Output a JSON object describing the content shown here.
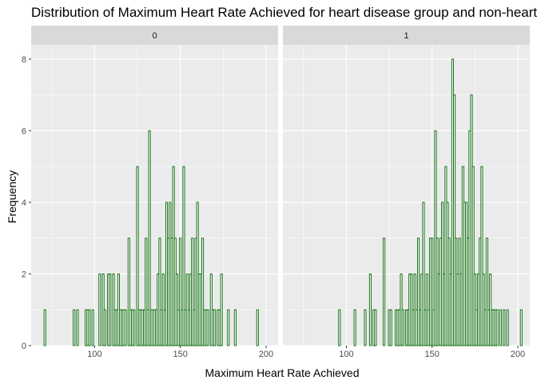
{
  "chart_data": {
    "type": "bar",
    "subtype": "faceted-histogram",
    "title": "Distribution of Maximum Heart Rate Achieved for heart disease group and non-heart disease group",
    "xlabel": "Maximum Heart Rate Achieved",
    "ylabel": "Frequency",
    "xlim": [
      63,
      207
    ],
    "ylim": [
      0,
      8.4
    ],
    "x_ticks": [
      100,
      150,
      200
    ],
    "y_ticks": [
      0,
      2,
      4,
      6,
      8
    ],
    "bin_width": 1,
    "bar_fill": "#ffffff",
    "bar_outline": "#006400",
    "panel_background": "#ebebeb",
    "strip_background": "#d9d9d9",
    "grid": true,
    "legend": "none",
    "facets": [
      {
        "label": "0",
        "bins": [
          [
            71,
            1
          ],
          [
            88,
            1
          ],
          [
            90,
            1
          ],
          [
            95,
            1
          ],
          [
            96,
            1
          ],
          [
            97,
            1
          ],
          [
            99,
            1
          ],
          [
            103,
            2
          ],
          [
            105,
            2
          ],
          [
            106,
            1
          ],
          [
            108,
            2
          ],
          [
            109,
            2
          ],
          [
            111,
            2
          ],
          [
            112,
            1
          ],
          [
            113,
            1
          ],
          [
            114,
            2
          ],
          [
            115,
            1
          ],
          [
            116,
            1
          ],
          [
            117,
            1
          ],
          [
            118,
            1
          ],
          [
            120,
            3
          ],
          [
            121,
            1
          ],
          [
            122,
            1
          ],
          [
            123,
            1
          ],
          [
            125,
            5
          ],
          [
            126,
            1
          ],
          [
            127,
            1
          ],
          [
            128,
            1
          ],
          [
            129,
            1
          ],
          [
            130,
            3
          ],
          [
            131,
            1
          ],
          [
            132,
            6
          ],
          [
            133,
            1
          ],
          [
            134,
            1
          ],
          [
            135,
            1
          ],
          [
            136,
            1
          ],
          [
            137,
            2
          ],
          [
            138,
            3
          ],
          [
            139,
            1
          ],
          [
            140,
            2
          ],
          [
            141,
            1
          ],
          [
            142,
            4
          ],
          [
            143,
            3
          ],
          [
            144,
            4
          ],
          [
            145,
            3
          ],
          [
            146,
            5
          ],
          [
            147,
            3
          ],
          [
            148,
            2
          ],
          [
            149,
            1
          ],
          [
            150,
            3
          ],
          [
            151,
            1
          ],
          [
            152,
            5
          ],
          [
            153,
            1
          ],
          [
            154,
            2
          ],
          [
            155,
            1
          ],
          [
            156,
            2
          ],
          [
            157,
            3
          ],
          [
            158,
            1
          ],
          [
            159,
            3
          ],
          [
            160,
            4
          ],
          [
            161,
            2
          ],
          [
            162,
            2
          ],
          [
            163,
            3
          ],
          [
            164,
            1
          ],
          [
            165,
            1
          ],
          [
            166,
            1
          ],
          [
            168,
            2
          ],
          [
            169,
            1
          ],
          [
            170,
            1
          ],
          [
            172,
            1
          ],
          [
            173,
            1
          ],
          [
            174,
            2
          ],
          [
            178,
            1
          ],
          [
            182,
            1
          ],
          [
            195,
            1
          ]
        ]
      },
      {
        "label": "1",
        "bins": [
          [
            96,
            1
          ],
          [
            105,
            1
          ],
          [
            111,
            1
          ],
          [
            114,
            2
          ],
          [
            116,
            1
          ],
          [
            117,
            1
          ],
          [
            122,
            3
          ],
          [
            125,
            1
          ],
          [
            126,
            1
          ],
          [
            129,
            1
          ],
          [
            130,
            1
          ],
          [
            131,
            1
          ],
          [
            132,
            2
          ],
          [
            133,
            1
          ],
          [
            135,
            1
          ],
          [
            136,
            1
          ],
          [
            137,
            2
          ],
          [
            138,
            2
          ],
          [
            139,
            1
          ],
          [
            140,
            2
          ],
          [
            141,
            1
          ],
          [
            142,
            3
          ],
          [
            143,
            1
          ],
          [
            144,
            2
          ],
          [
            145,
            4
          ],
          [
            146,
            1
          ],
          [
            147,
            2
          ],
          [
            148,
            1
          ],
          [
            149,
            3
          ],
          [
            150,
            3
          ],
          [
            151,
            1
          ],
          [
            152,
            6
          ],
          [
            153,
            3
          ],
          [
            154,
            2
          ],
          [
            155,
            3
          ],
          [
            156,
            4
          ],
          [
            157,
            2
          ],
          [
            158,
            5
          ],
          [
            159,
            4
          ],
          [
            160,
            3
          ],
          [
            161,
            2
          ],
          [
            162,
            8
          ],
          [
            163,
            7
          ],
          [
            164,
            3
          ],
          [
            165,
            2
          ],
          [
            166,
            3
          ],
          [
            167,
            2
          ],
          [
            168,
            5
          ],
          [
            169,
            4
          ],
          [
            170,
            4
          ],
          [
            171,
            3
          ],
          [
            172,
            6
          ],
          [
            173,
            7
          ],
          [
            174,
            5
          ],
          [
            175,
            2
          ],
          [
            176,
            1
          ],
          [
            177,
            2
          ],
          [
            178,
            3
          ],
          [
            179,
            5
          ],
          [
            180,
            2
          ],
          [
            181,
            1
          ],
          [
            182,
            3
          ],
          [
            183,
            1
          ],
          [
            184,
            2
          ],
          [
            185,
            1
          ],
          [
            186,
            1
          ],
          [
            187,
            1
          ],
          [
            188,
            1
          ],
          [
            190,
            1
          ],
          [
            192,
            1
          ],
          [
            194,
            1
          ],
          [
            202,
            1
          ]
        ]
      }
    ]
  }
}
